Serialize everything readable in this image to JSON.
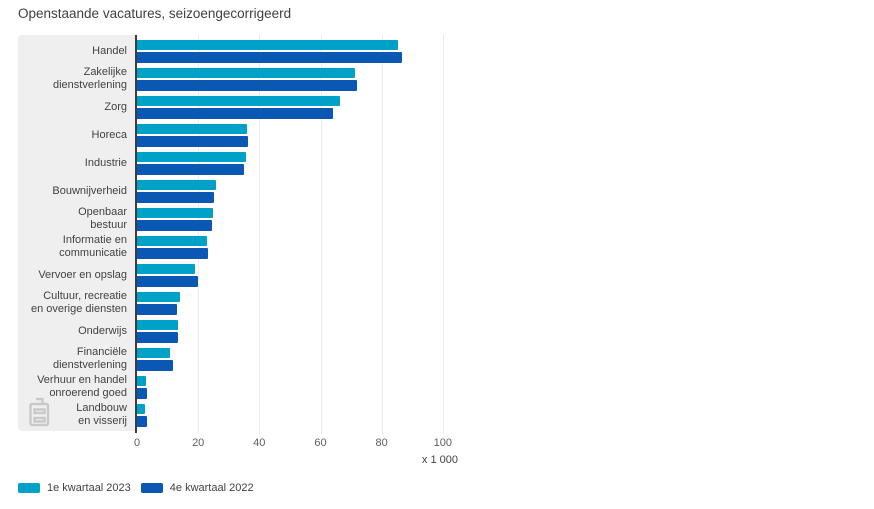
{
  "title": "Openstaande vacatures, seizoengecorrigeerd",
  "chart_data": {
    "type": "bar",
    "orientation": "horizontal",
    "title": "Openstaande vacatures, seizoengecorrigeerd",
    "unit_label": "x 1 000",
    "xlabel": "",
    "ylabel": "",
    "xlim": [
      0,
      104
    ],
    "x_ticks": [
      0,
      20,
      40,
      60,
      80,
      100
    ],
    "grid": true,
    "legend_position": "bottom-left",
    "categories": [
      "Handel",
      "Zakelijke\ndienstverlening",
      "Zorg",
      "Horeca",
      "Industrie",
      "Bouwnijverheid",
      "Openbaar\nbestuur",
      "Informatie en\ncommunicatie",
      "Vervoer en opslag",
      "Cultuur, recreatie\nen overige diensten",
      "Onderwijs",
      "Financiële\ndienstverlening",
      "Verhuur en handel\nonroerend goed",
      "Landbouw\nen visserij"
    ],
    "series": [
      {
        "name": "1e kwartaal 2023",
        "color": "#00a1c9",
        "values": [
          85.4,
          71.4,
          66.3,
          35.8,
          35.5,
          25.7,
          25.0,
          23.0,
          18.8,
          14.0,
          13.4,
          10.9,
          3.0,
          2.6
        ]
      },
      {
        "name": "4e kwartaal 2022",
        "color": "#0a58b4",
        "values": [
          86.6,
          72.0,
          64.2,
          36.2,
          35.0,
          25.1,
          24.4,
          23.3,
          19.9,
          13.1,
          13.4,
          11.7,
          3.3,
          3.3
        ]
      }
    ]
  },
  "colors": {
    "panel_bg": "#efefef",
    "gridline": "#ebebeb",
    "axis_line": "#3c3c3c",
    "title_text": "#3f3f3f",
    "label_text": "#424242",
    "tick_text": "#5e5e5e",
    "logo": "#c9c9c9"
  },
  "icons": {
    "logo": "cbs-logo-icon"
  }
}
